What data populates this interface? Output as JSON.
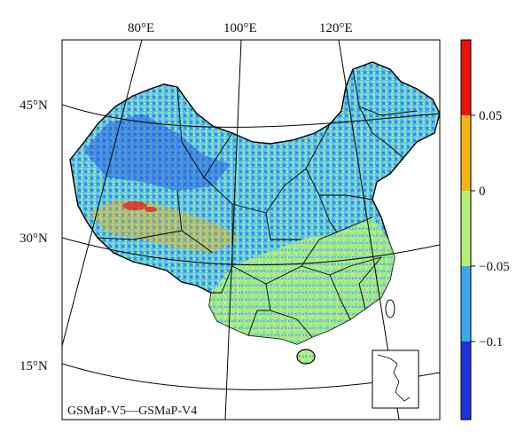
{
  "map": {
    "title_text": "GSMaP-V5—GSMaP-V4",
    "longitude_labels": [
      "80°E",
      "100°E",
      "120°E"
    ],
    "latitude_labels": [
      "45°N",
      "30°N",
      "15°N"
    ]
  },
  "colorbar": {
    "tick_labels": [
      "0.05",
      "0",
      "−0.05",
      "−0.1"
    ],
    "classes": [
      {
        "range": "> 0.05",
        "color": "#e8120f"
      },
      {
        "range": "0 to 0.05",
        "color": "#f4b418"
      },
      {
        "range": "−0.05 to 0",
        "color": "#b8ee78"
      },
      {
        "range": "−0.1 to −0.05",
        "color": "#3aa6ee"
      },
      {
        "range": "< −0.1",
        "color": "#1d33d8"
      }
    ]
  },
  "legend_colors": {
    "frame": "#000000",
    "background": "#ffffff"
  }
}
